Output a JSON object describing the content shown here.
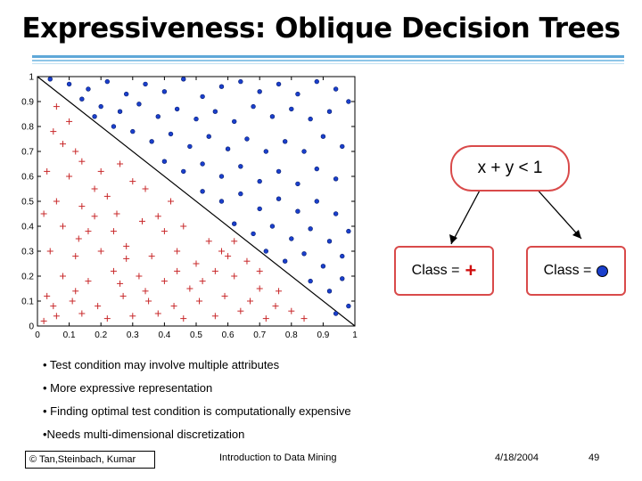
{
  "slide": {
    "title": "Expressiveness: Oblique Decision Trees"
  },
  "chart_data": {
    "type": "scatter",
    "xlim": [
      0,
      1
    ],
    "ylim": [
      0,
      1
    ],
    "x_ticks": [
      "0",
      "0.1",
      "0.2",
      "0.3",
      "0.4",
      "0.5",
      "0.6",
      "0.7",
      "0.8",
      "0.9",
      "1"
    ],
    "y_ticks": [
      "0",
      "0.1",
      "0.2",
      "0.3",
      "0.4",
      "0.5",
      "0.6",
      "0.7",
      "0.8",
      "0.9",
      "1"
    ],
    "boundary": {
      "x": [
        0,
        1
      ],
      "y": [
        1,
        0
      ]
    },
    "plus_color": "#c8282a",
    "dot_color": "#1a3fcc",
    "series": [
      {
        "marker": "plus",
        "points": [
          [
            0.05,
            0.78
          ],
          [
            0.08,
            0.73
          ],
          [
            0.12,
            0.7
          ],
          [
            0.03,
            0.62
          ],
          [
            0.1,
            0.6
          ],
          [
            0.18,
            0.55
          ],
          [
            0.06,
            0.5
          ],
          [
            0.14,
            0.48
          ],
          [
            0.22,
            0.52
          ],
          [
            0.3,
            0.58
          ],
          [
            0.25,
            0.45
          ],
          [
            0.33,
            0.42
          ],
          [
            0.4,
            0.38
          ],
          [
            0.08,
            0.4
          ],
          [
            0.16,
            0.38
          ],
          [
            0.04,
            0.3
          ],
          [
            0.12,
            0.28
          ],
          [
            0.2,
            0.3
          ],
          [
            0.28,
            0.32
          ],
          [
            0.36,
            0.28
          ],
          [
            0.44,
            0.3
          ],
          [
            0.5,
            0.25
          ],
          [
            0.56,
            0.22
          ],
          [
            0.62,
            0.2
          ],
          [
            0.48,
            0.15
          ],
          [
            0.4,
            0.18
          ],
          [
            0.32,
            0.2
          ],
          [
            0.24,
            0.22
          ],
          [
            0.16,
            0.18
          ],
          [
            0.08,
            0.2
          ],
          [
            0.03,
            0.12
          ],
          [
            0.11,
            0.1
          ],
          [
            0.19,
            0.08
          ],
          [
            0.27,
            0.12
          ],
          [
            0.35,
            0.1
          ],
          [
            0.43,
            0.08
          ],
          [
            0.51,
            0.1
          ],
          [
            0.59,
            0.12
          ],
          [
            0.67,
            0.1
          ],
          [
            0.75,
            0.08
          ],
          [
            0.7,
            0.15
          ],
          [
            0.64,
            0.06
          ],
          [
            0.56,
            0.04
          ],
          [
            0.46,
            0.03
          ],
          [
            0.38,
            0.05
          ],
          [
            0.3,
            0.04
          ],
          [
            0.22,
            0.03
          ],
          [
            0.14,
            0.05
          ],
          [
            0.06,
            0.04
          ],
          [
            0.02,
            0.02
          ],
          [
            0.8,
            0.06
          ],
          [
            0.72,
            0.03
          ],
          [
            0.84,
            0.03
          ],
          [
            0.2,
            0.62
          ],
          [
            0.26,
            0.65
          ],
          [
            0.34,
            0.55
          ],
          [
            0.42,
            0.5
          ],
          [
            0.1,
            0.82
          ],
          [
            0.14,
            0.66
          ],
          [
            0.24,
            0.38
          ],
          [
            0.46,
            0.4
          ],
          [
            0.54,
            0.34
          ],
          [
            0.58,
            0.3
          ],
          [
            0.66,
            0.26
          ],
          [
            0.06,
            0.88
          ],
          [
            0.02,
            0.45
          ],
          [
            0.13,
            0.35
          ],
          [
            0.38,
            0.44
          ],
          [
            0.52,
            0.18
          ],
          [
            0.6,
            0.28
          ],
          [
            0.28,
            0.27
          ],
          [
            0.18,
            0.44
          ],
          [
            0.44,
            0.22
          ],
          [
            0.34,
            0.14
          ],
          [
            0.26,
            0.17
          ],
          [
            0.12,
            0.14
          ],
          [
            0.05,
            0.08
          ],
          [
            0.7,
            0.22
          ],
          [
            0.76,
            0.14
          ],
          [
            0.62,
            0.34
          ]
        ]
      },
      {
        "marker": "dot",
        "points": [
          [
            0.04,
            0.99
          ],
          [
            0.1,
            0.97
          ],
          [
            0.16,
            0.95
          ],
          [
            0.22,
            0.98
          ],
          [
            0.28,
            0.93
          ],
          [
            0.34,
            0.97
          ],
          [
            0.4,
            0.94
          ],
          [
            0.46,
            0.99
          ],
          [
            0.52,
            0.92
          ],
          [
            0.58,
            0.96
          ],
          [
            0.64,
            0.98
          ],
          [
            0.7,
            0.94
          ],
          [
            0.76,
            0.97
          ],
          [
            0.82,
            0.93
          ],
          [
            0.88,
            0.98
          ],
          [
            0.94,
            0.95
          ],
          [
            0.98,
            0.9
          ],
          [
            0.14,
            0.91
          ],
          [
            0.2,
            0.88
          ],
          [
            0.26,
            0.86
          ],
          [
            0.32,
            0.89
          ],
          [
            0.38,
            0.84
          ],
          [
            0.44,
            0.87
          ],
          [
            0.5,
            0.83
          ],
          [
            0.56,
            0.86
          ],
          [
            0.62,
            0.82
          ],
          [
            0.68,
            0.88
          ],
          [
            0.74,
            0.84
          ],
          [
            0.8,
            0.87
          ],
          [
            0.86,
            0.83
          ],
          [
            0.92,
            0.86
          ],
          [
            0.3,
            0.78
          ],
          [
            0.36,
            0.74
          ],
          [
            0.42,
            0.77
          ],
          [
            0.48,
            0.72
          ],
          [
            0.54,
            0.76
          ],
          [
            0.6,
            0.71
          ],
          [
            0.66,
            0.75
          ],
          [
            0.72,
            0.7
          ],
          [
            0.78,
            0.74
          ],
          [
            0.84,
            0.7
          ],
          [
            0.9,
            0.76
          ],
          [
            0.96,
            0.72
          ],
          [
            0.4,
            0.66
          ],
          [
            0.46,
            0.62
          ],
          [
            0.52,
            0.65
          ],
          [
            0.58,
            0.6
          ],
          [
            0.64,
            0.64
          ],
          [
            0.7,
            0.58
          ],
          [
            0.76,
            0.62
          ],
          [
            0.82,
            0.57
          ],
          [
            0.88,
            0.63
          ],
          [
            0.94,
            0.59
          ],
          [
            0.52,
            0.54
          ],
          [
            0.58,
            0.5
          ],
          [
            0.64,
            0.53
          ],
          [
            0.7,
            0.47
          ],
          [
            0.76,
            0.51
          ],
          [
            0.82,
            0.46
          ],
          [
            0.88,
            0.5
          ],
          [
            0.94,
            0.45
          ],
          [
            0.62,
            0.41
          ],
          [
            0.68,
            0.37
          ],
          [
            0.74,
            0.4
          ],
          [
            0.8,
            0.35
          ],
          [
            0.86,
            0.39
          ],
          [
            0.92,
            0.34
          ],
          [
            0.98,
            0.38
          ],
          [
            0.72,
            0.3
          ],
          [
            0.78,
            0.26
          ],
          [
            0.84,
            0.29
          ],
          [
            0.9,
            0.24
          ],
          [
            0.96,
            0.28
          ],
          [
            0.86,
            0.18
          ],
          [
            0.92,
            0.14
          ],
          [
            0.96,
            0.19
          ],
          [
            0.98,
            0.08
          ],
          [
            0.94,
            0.05
          ],
          [
            0.24,
            0.8
          ],
          [
            0.18,
            0.84
          ]
        ]
      }
    ]
  },
  "tree": {
    "root_label": "x + y < 1",
    "left_label": "Class = ",
    "left_symbol": "+",
    "right_label": "Class = "
  },
  "bullets": [
    "• Test condition may involve multiple attributes",
    "• More expressive representation",
    "• Finding optimal test condition is computationally expensive",
    "•Needs multi-dimensional discretization"
  ],
  "footer": {
    "copyright": "© Tan,Steinbach, Kumar",
    "course": "Introduction to Data Mining",
    "date": "4/18/2004",
    "page": "49"
  }
}
